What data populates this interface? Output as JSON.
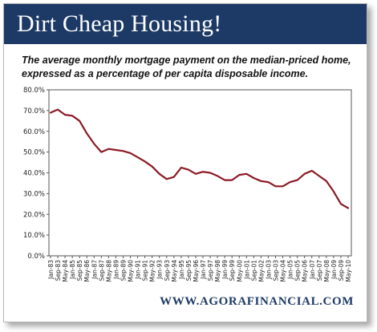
{
  "header": {
    "title": "Dirt Cheap Housing!",
    "background_color": "#1d3a66"
  },
  "subtitle": "The average monthly mortgage payment on the median-priced home, expressed as a percentage of per capita disposable income.",
  "footer": {
    "source": "WWW.AGORAFINANCIAL.COM"
  },
  "chart_data": {
    "type": "line",
    "title": "",
    "xlabel": "",
    "ylabel": "",
    "ylim": [
      0,
      80
    ],
    "yticks": [
      "0.0%",
      "10.0%",
      "20.0%",
      "30.0%",
      "40.0%",
      "50.0%",
      "60.0%",
      "70.0%",
      "80.0%"
    ],
    "grid": false,
    "line_color": "#8b1a24",
    "categories": [
      "Jan-83",
      "Sep-83",
      "May-84",
      "Jan-85",
      "Sep-85",
      "May-86",
      "Jan-87",
      "Sep-87",
      "May-88",
      "Jan-89",
      "Sep-89",
      "May-90",
      "Jan-91",
      "Sep-91",
      "May-92",
      "Jan-93",
      "Sep-93",
      "May-94",
      "Jan-95",
      "Sep-95",
      "May-96",
      "Jan-97",
      "Sep-97",
      "May-98",
      "Jan-99",
      "Sep-99",
      "May-00",
      "Jan-01",
      "Sep-01",
      "May-02",
      "Jan-03",
      "Sep-03",
      "May-04",
      "Jan-05",
      "Sep-05",
      "May-06",
      "Jan-07",
      "Sep-07",
      "May-08",
      "Jan-09",
      "Sep-09",
      "May-10"
    ],
    "series": [
      {
        "values": [
          69,
          70.5,
          68,
          67.5,
          65,
          59,
          54,
          50,
          51.5,
          51,
          50.5,
          49.5,
          47.5,
          45.5,
          43,
          39.5,
          37,
          38,
          42.5,
          41.5,
          39.5,
          40.5,
          40,
          38.5,
          36.5,
          36.5,
          39,
          39.5,
          37.5,
          36,
          35.5,
          33.5,
          33.5,
          35.5,
          36.5,
          39.5,
          41,
          38.5,
          36,
          31,
          25,
          23
        ]
      }
    ]
  }
}
